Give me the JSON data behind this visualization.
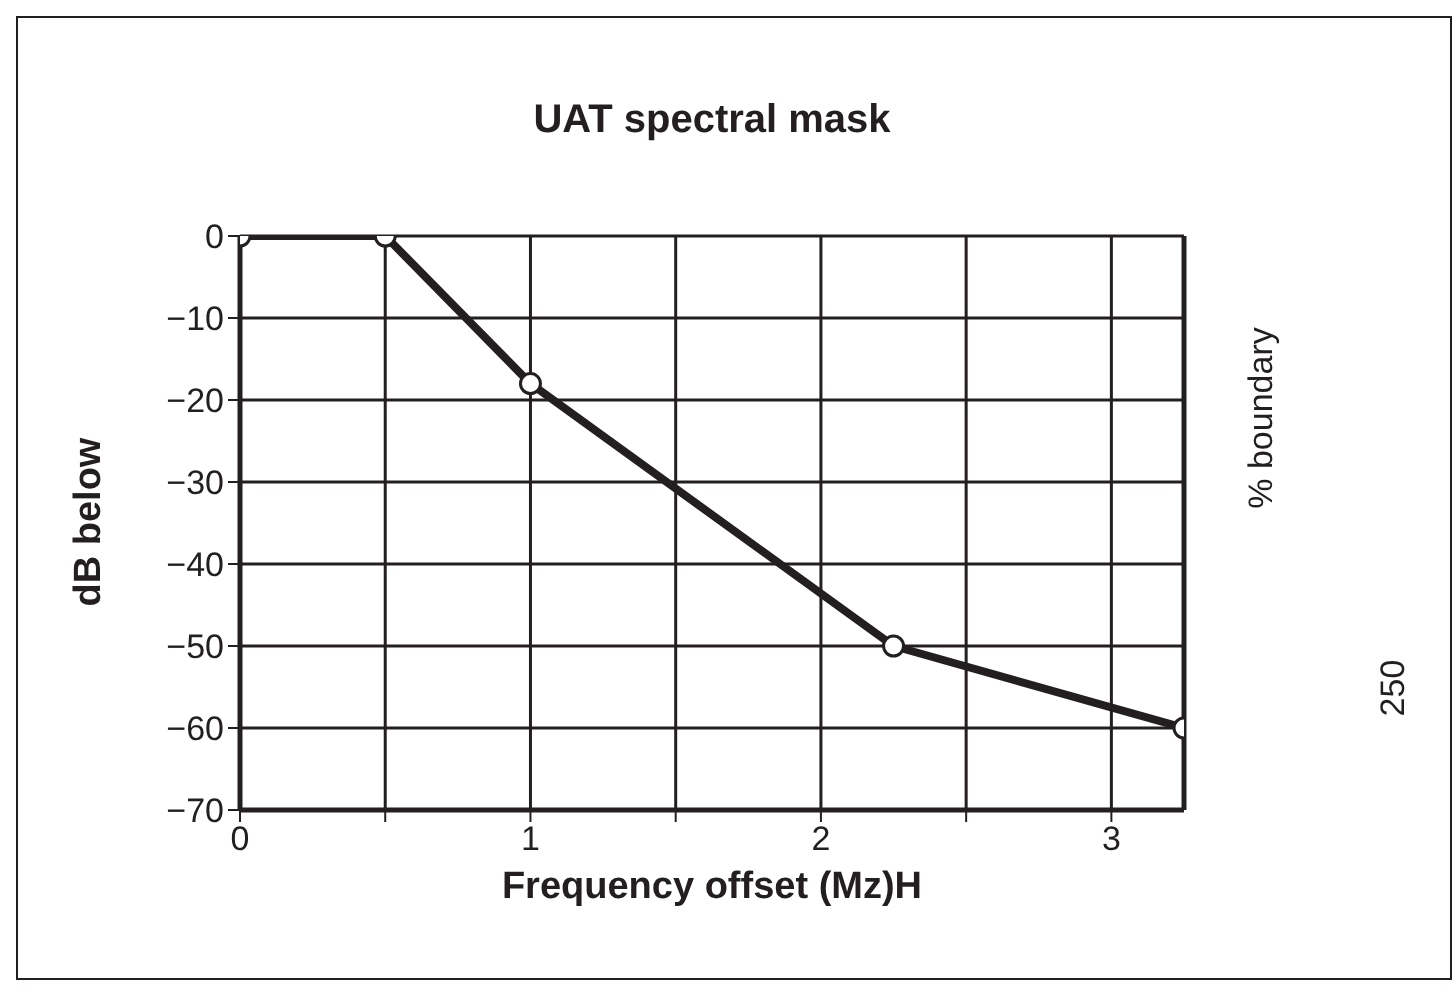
{
  "chart_data": {
    "type": "line",
    "title": "UAT spectral mask",
    "xlabel": "Frequency offset (Mz)H",
    "ylabel": "dB below",
    "y2label": "% boundary",
    "annotations": [
      "250"
    ],
    "x": [
      0,
      0.5,
      1,
      2.25,
      3.25
    ],
    "series": [
      {
        "color": "#231f20",
        "values": [
          0,
          0,
          -18,
          -50,
          -60
        ]
      }
    ],
    "xlim": [
      0,
      3.25
    ],
    "xticks": [
      0,
      {
        "value": 0.5,
        "label": null
      },
      1,
      {
        "value": 1.5,
        "label": null
      },
      2,
      {
        "value": 2.5,
        "label": null
      },
      3
    ],
    "ylim": [
      -70,
      0
    ],
    "yticks": [
      0,
      {
        "value": -10,
        "label": "−10"
      },
      {
        "value": -20,
        "label": "−20"
      },
      {
        "value": -30,
        "label": "−30"
      },
      {
        "value": -40,
        "label": "−40"
      },
      {
        "value": -50,
        "label": "−50"
      },
      {
        "value": -60,
        "label": "−60"
      },
      {
        "value": -70,
        "label": "−70"
      }
    ],
    "grid": true,
    "marker": "circle",
    "line_style": "solid"
  }
}
